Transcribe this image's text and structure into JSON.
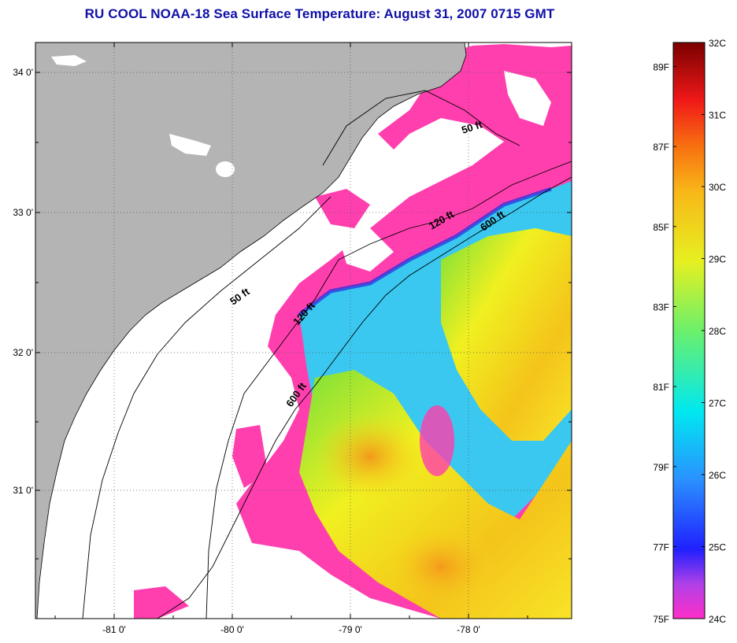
{
  "title": "RU COOL  NOAA-18  Sea Surface Temperature:  August 31, 2007 0715 GMT",
  "map": {
    "lat_ticks": [
      "34 0'",
      "33 0'",
      "32 0'",
      "31 0'"
    ],
    "lon_ticks": [
      "-81 0'",
      "-80 0'",
      "-79 0'",
      "-78 0'"
    ],
    "isobaths": [
      {
        "label": "50 ft"
      },
      {
        "label": "120 ft"
      },
      {
        "label": "600 ft"
      },
      {
        "label": "50 ft"
      },
      {
        "label": "120 ft"
      },
      {
        "label": "600 ft"
      }
    ],
    "colors": {
      "land": "#b4b4b4",
      "no_data": "#ffffff",
      "cold": "#ff3fae",
      "coast": "#000000"
    }
  },
  "colorbar": {
    "f_labels": [
      "89F",
      "87F",
      "85F",
      "83F",
      "81F",
      "79F",
      "77F",
      "75F"
    ],
    "c_labels": [
      "32C",
      "31C",
      "30C",
      "29C",
      "28C",
      "27C",
      "26C",
      "25C",
      "24C"
    ],
    "range_c": [
      24,
      32
    ]
  }
}
